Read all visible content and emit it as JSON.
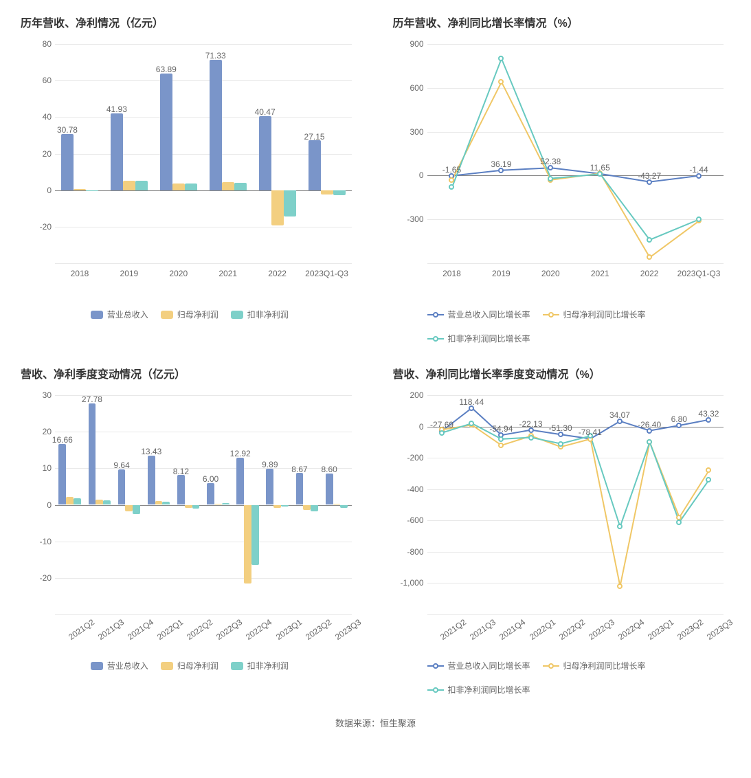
{
  "colors": {
    "blue": "#7a95c9",
    "yellow": "#f3cf80",
    "teal": "#7ed0c9",
    "line_blue": "#5b7fc2",
    "line_yellow": "#f0c766",
    "line_teal": "#67c9c0",
    "grid": "#e8e8e8",
    "axis": "#888888",
    "text": "#666666",
    "title": "#333333",
    "bg": "#ffffff"
  },
  "chart1": {
    "type": "bar",
    "title": "历年营收、净利情况（亿元）",
    "categories": [
      "2018",
      "2019",
      "2020",
      "2021",
      "2022",
      "2023Q1-Q3"
    ],
    "ylim": [
      -40,
      80
    ],
    "ytick_step": 20,
    "series": [
      {
        "name": "营业总收入",
        "color_key": "blue",
        "values": [
          30.78,
          41.93,
          63.89,
          71.33,
          40.47,
          27.15
        ]
      },
      {
        "name": "归母净利润",
        "color_key": "yellow",
        "values": [
          0.7,
          5.2,
          3.5,
          4.5,
          -19.5,
          -2.2
        ]
      },
      {
        "name": "扣非净利润",
        "color_key": "teal",
        "values": [
          -0.5,
          5.0,
          3.8,
          4.2,
          -14.5,
          -2.8
        ]
      }
    ],
    "value_labels": [
      30.78,
      41.93,
      63.89,
      71.33,
      40.47,
      27.15
    ],
    "bar_group_width": 0.75,
    "title_fontsize": 16,
    "label_fontsize": 12,
    "legend": [
      "营业总收入",
      "归母净利润",
      "扣非净利润"
    ]
  },
  "chart2": {
    "type": "line",
    "title": "历年营收、净利同比增长率情况（%）",
    "categories": [
      "2018",
      "2019",
      "2020",
      "2021",
      "2022",
      "2023Q1-Q3"
    ],
    "ylim": [
      -600,
      900
    ],
    "ytick_step": 300,
    "series": [
      {
        "name": "营业总收入同比增长率",
        "color_key": "line_blue",
        "values": [
          -1.65,
          36.19,
          52.38,
          11.65,
          -43.27,
          -1.44
        ]
      },
      {
        "name": "归母净利润同比增长率",
        "color_key": "line_yellow",
        "values": [
          -30,
          640,
          -30,
          15,
          -560,
          -310
        ]
      },
      {
        "name": "扣非净利润同比增长率",
        "color_key": "line_teal",
        "values": [
          -80,
          800,
          -20,
          10,
          -440,
          -300
        ]
      }
    ],
    "value_labels": [
      -1.65,
      36.19,
      52.38,
      11.65,
      -43.27,
      -1.44
    ],
    "line_width": 2,
    "marker_size": 8,
    "legend": [
      "营业总收入同比增长率",
      "归母净利润同比增长率",
      "扣非净利润同比增长率"
    ]
  },
  "chart3": {
    "type": "bar",
    "title": "营收、净利季度变动情况（亿元）",
    "categories": [
      "2021Q2",
      "2021Q3",
      "2021Q4",
      "2022Q1",
      "2022Q2",
      "2022Q3",
      "2022Q4",
      "2023Q1",
      "2023Q2",
      "2023Q3"
    ],
    "ylim": [
      -30,
      30
    ],
    "ytick_step": 10,
    "series": [
      {
        "name": "营业总收入",
        "color_key": "blue",
        "values": [
          16.66,
          27.78,
          9.64,
          13.43,
          8.12,
          6.0,
          12.92,
          9.89,
          8.67,
          8.6
        ]
      },
      {
        "name": "归母净利润",
        "color_key": "yellow",
        "values": [
          2.2,
          1.5,
          -1.8,
          1.0,
          -0.8,
          0.3,
          -21.5,
          -0.8,
          -1.5,
          0.2
        ]
      },
      {
        "name": "扣非净利润",
        "color_key": "teal",
        "values": [
          1.8,
          1.3,
          -2.5,
          0.8,
          -1.0,
          0.5,
          -16.5,
          -0.5,
          -1.8,
          -0.8
        ]
      }
    ],
    "value_labels": [
      16.66,
      27.78,
      9.64,
      13.43,
      8.12,
      6.0,
      12.92,
      9.89,
      8.67,
      8.6
    ],
    "xlabel_rotated": true,
    "bar_group_width": 0.75,
    "legend": [
      "营业总收入",
      "归母净利润",
      "扣非净利润"
    ]
  },
  "chart4": {
    "type": "line",
    "title": "营收、净利同比增长率季度变动情况（%）",
    "categories": [
      "2021Q2",
      "2021Q3",
      "2021Q4",
      "2022Q1",
      "2022Q2",
      "2022Q3",
      "2022Q4",
      "2023Q1",
      "2023Q2",
      "2023Q3"
    ],
    "ylim": [
      -1200,
      200
    ],
    "ytick_step": 200,
    "series": [
      {
        "name": "营业总收入同比增长率",
        "color_key": "line_blue",
        "values": [
          -27.69,
          118.44,
          -54.94,
          -22.13,
          -51.3,
          -78.41,
          34.07,
          -26.4,
          6.8,
          43.32
        ]
      },
      {
        "name": "归母净利润同比增长率",
        "color_key": "line_yellow",
        "values": [
          -20,
          10,
          -120,
          -60,
          -130,
          -80,
          -1020,
          -100,
          -580,
          -280
        ]
      },
      {
        "name": "扣非净利润同比增长率",
        "color_key": "line_teal",
        "values": [
          -40,
          20,
          -80,
          -70,
          -110,
          -60,
          -640,
          -100,
          -610,
          -340
        ]
      }
    ],
    "value_labels": [
      -27.69,
      118.44,
      -54.94,
      -22.13,
      -51.3,
      -78.41,
      34.07,
      -26.4,
      6.8,
      43.32
    ],
    "xlabel_rotated": true,
    "line_width": 2,
    "marker_size": 8,
    "legend": [
      "营业总收入同比增长率",
      "归母净利润同比增长率",
      "扣非净利润同比增长率"
    ]
  },
  "footer": "数据来源：恒生聚源"
}
